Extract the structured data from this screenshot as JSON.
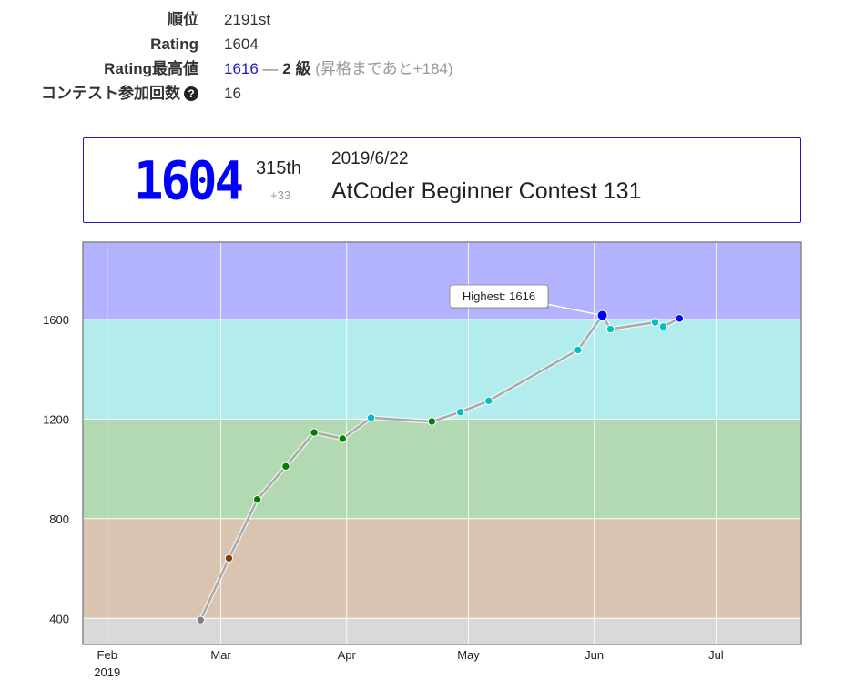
{
  "stats": {
    "rank_label": "順位",
    "rank_value": "2191st",
    "rating_label": "Rating",
    "rating_value": "1604",
    "highest_label": "Rating最高値",
    "highest_value": "1616",
    "highest_sep": " — ",
    "highest_grade": "2 級",
    "highest_next": " (昇格まであと+184)",
    "contests_label": "コンテスト参加回数",
    "contests_help": "?",
    "contests_value": "16"
  },
  "card": {
    "rating": "1604",
    "rank": "315th",
    "diff": "+33",
    "date": "2019/6/22",
    "contest": "AtCoder Beginner Contest 131"
  },
  "colors": {
    "accent_blue": "#1a1acc",
    "band_gray": "#d9d9d9",
    "band_brown": "#d9c4b2",
    "band_green": "#b2d9b2",
    "band_cyan": "#b2ecec",
    "band_blue": "#b2b2ff",
    "dot_gray": "#808080",
    "dot_brown": "#804000",
    "dot_green": "#008000",
    "dot_cyan": "#00c0c0",
    "dot_blue": "#0000ff"
  },
  "chart_data": {
    "type": "line",
    "title": "",
    "xlabel": "",
    "ylabel": "",
    "xlim": [
      "2019-01-26",
      "2019-07-22"
    ],
    "ylim": [
      295,
      1910
    ],
    "x_ticks": [
      {
        "date": "2019-02-01",
        "label": "Feb",
        "sublabel": "2019"
      },
      {
        "date": "2019-03-01",
        "label": "Mar",
        "sublabel": ""
      },
      {
        "date": "2019-04-01",
        "label": "Apr",
        "sublabel": ""
      },
      {
        "date": "2019-05-01",
        "label": "May",
        "sublabel": ""
      },
      {
        "date": "2019-06-01",
        "label": "Jun",
        "sublabel": ""
      },
      {
        "date": "2019-07-01",
        "label": "Jul",
        "sublabel": ""
      }
    ],
    "y_ticks": [
      400,
      800,
      1200,
      1600
    ],
    "grid": true,
    "bands": [
      {
        "from": 0,
        "to": 400,
        "color": "#d9d9d9"
      },
      {
        "from": 400,
        "to": 800,
        "color": "#d9c4b2"
      },
      {
        "from": 800,
        "to": 1200,
        "color": "#b2d9b2"
      },
      {
        "from": 1200,
        "to": 1600,
        "color": "#b2ecec"
      },
      {
        "from": 1600,
        "to": 2000,
        "color": "#b2b2ff"
      }
    ],
    "series": [
      {
        "points": [
          {
            "date": "2019-02-24",
            "value": 393
          },
          {
            "date": "2019-03-03",
            "value": 641
          },
          {
            "date": "2019-03-10",
            "value": 877
          },
          {
            "date": "2019-03-17",
            "value": 1010
          },
          {
            "date": "2019-03-24",
            "value": 1146
          },
          {
            "date": "2019-03-31",
            "value": 1121
          },
          {
            "date": "2019-04-07",
            "value": 1205
          },
          {
            "date": "2019-04-22",
            "value": 1190
          },
          {
            "date": "2019-04-29",
            "value": 1228
          },
          {
            "date": "2019-05-06",
            "value": 1273
          },
          {
            "date": "2019-05-28",
            "value": 1477
          },
          {
            "date": "2019-06-03",
            "value": 1616
          },
          {
            "date": "2019-06-05",
            "value": 1561
          },
          {
            "date": "2019-06-16",
            "value": 1588
          },
          {
            "date": "2019-06-18",
            "value": 1571
          },
          {
            "date": "2019-06-22",
            "value": 1604
          }
        ]
      }
    ],
    "annotation": {
      "text": "Highest: 1616",
      "date": "2019-06-03",
      "value": 1616
    }
  }
}
